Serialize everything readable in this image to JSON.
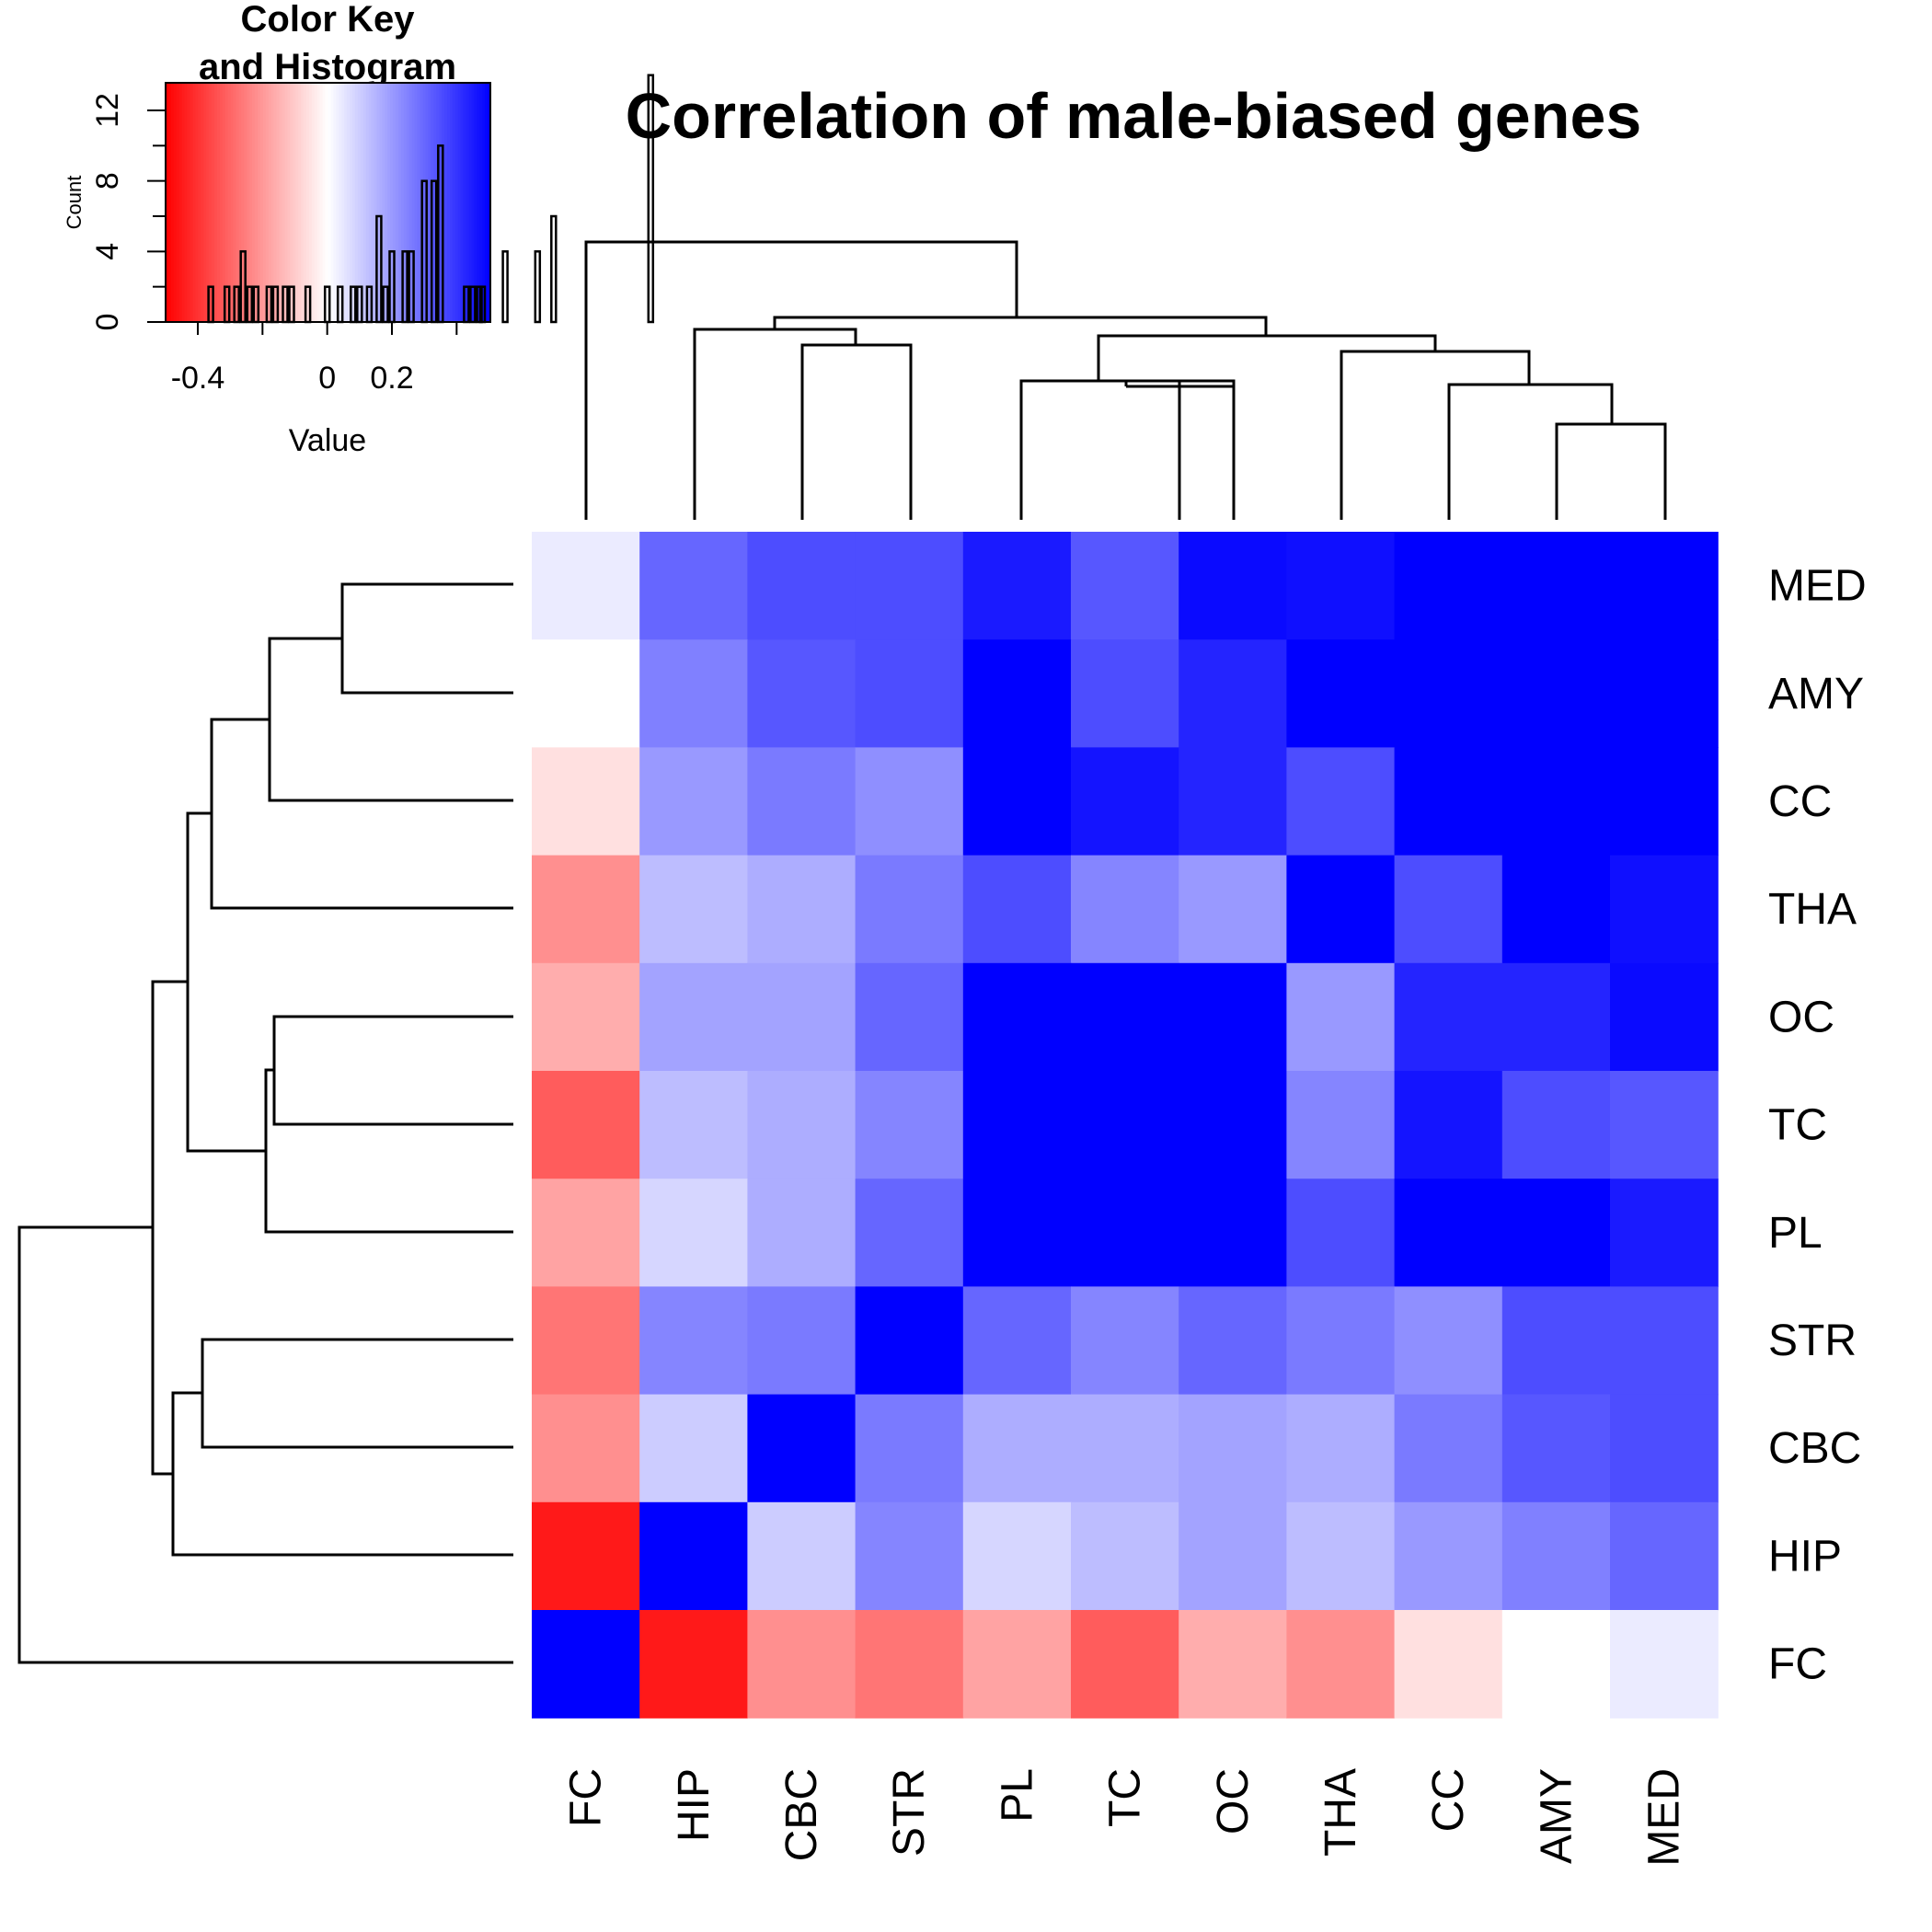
{
  "chart_data": {
    "type": "heatmap",
    "title": "Correlation of male-biased genes",
    "columns": [
      "FC",
      "HIP",
      "CBC",
      "STR",
      "PL",
      "TC",
      "OC",
      "THA",
      "CC",
      "AMY",
      "MED"
    ],
    "rows": [
      "MED",
      "AMY",
      "CC",
      "THA",
      "OC",
      "TC",
      "PL",
      "STR",
      "CBC",
      "HIP",
      "FC"
    ],
    "values": [
      [
        0.04,
        0.3,
        0.35,
        0.35,
        0.45,
        0.33,
        0.48,
        0.47,
        0.7,
        1.0,
        1.0
      ],
      [
        0.0,
        0.25,
        0.33,
        0.35,
        0.55,
        0.35,
        0.43,
        0.54,
        0.65,
        1.0,
        1.0
      ],
      [
        -0.06,
        0.2,
        0.26,
        0.22,
        0.55,
        0.46,
        0.43,
        0.35,
        1.0,
        0.65,
        0.7
      ],
      [
        -0.22,
        0.13,
        0.16,
        0.26,
        0.35,
        0.24,
        0.2,
        1.0,
        0.35,
        0.55,
        0.47
      ],
      [
        -0.16,
        0.18,
        0.18,
        0.3,
        0.65,
        0.7,
        1.0,
        0.2,
        0.43,
        0.43,
        0.48
      ],
      [
        -0.32,
        0.13,
        0.16,
        0.24,
        0.7,
        1.0,
        0.7,
        0.24,
        0.46,
        0.35,
        0.33
      ],
      [
        -0.18,
        0.08,
        0.16,
        0.3,
        1.0,
        0.7,
        0.65,
        0.35,
        0.55,
        0.55,
        0.45
      ],
      [
        -0.27,
        0.24,
        0.26,
        1.0,
        0.3,
        0.24,
        0.3,
        0.26,
        0.22,
        0.35,
        0.35
      ],
      [
        -0.22,
        0.1,
        1.0,
        0.26,
        0.16,
        0.16,
        0.18,
        0.16,
        0.26,
        0.33,
        0.35
      ],
      [
        -0.45,
        1.0,
        0.1,
        0.24,
        0.08,
        0.13,
        0.18,
        0.13,
        0.2,
        0.25,
        0.3
      ],
      [
        1.0,
        -0.45,
        -0.22,
        -0.27,
        -0.18,
        -0.32,
        -0.16,
        -0.22,
        -0.06,
        0.0,
        0.04
      ]
    ],
    "color_key": {
      "title_line1": "Color Key",
      "title_line2": "and Histogram",
      "colors": {
        "low": "#ff0000",
        "mid": "#ffffff",
        "high": "#0000ff"
      },
      "range": [
        -0.5,
        0.5
      ],
      "x_ticks": [
        -0.4,
        0,
        0.2
      ],
      "x_tick_labels": [
        "-0.4",
        "0",
        "0.2"
      ],
      "xlabel": "Value",
      "ylabel": "Count",
      "y_ticks": [
        0,
        4,
        8,
        12
      ],
      "y_tick_labels": [
        "0",
        "4",
        "8",
        "12"
      ],
      "ylim": [
        0,
        14
      ],
      "histogram_bins": [
        {
          "x": -0.36,
          "count": 2
        },
        {
          "x": -0.31,
          "count": 2
        },
        {
          "x": -0.28,
          "count": 2
        },
        {
          "x": -0.26,
          "count": 4
        },
        {
          "x": -0.24,
          "count": 2
        },
        {
          "x": -0.22,
          "count": 2
        },
        {
          "x": -0.18,
          "count": 2
        },
        {
          "x": -0.16,
          "count": 2
        },
        {
          "x": -0.13,
          "count": 2
        },
        {
          "x": -0.11,
          "count": 2
        },
        {
          "x": -0.06,
          "count": 2
        },
        {
          "x": 0.0,
          "count": 2
        },
        {
          "x": 0.04,
          "count": 2
        },
        {
          "x": 0.08,
          "count": 2
        },
        {
          "x": 0.1,
          "count": 2
        },
        {
          "x": 0.13,
          "count": 2
        },
        {
          "x": 0.16,
          "count": 6
        },
        {
          "x": 0.18,
          "count": 2
        },
        {
          "x": 0.2,
          "count": 4
        },
        {
          "x": 0.24,
          "count": 4
        },
        {
          "x": 0.26,
          "count": 4
        },
        {
          "x": 0.3,
          "count": 8
        },
        {
          "x": 0.33,
          "count": 8
        },
        {
          "x": 0.35,
          "count": 10
        },
        {
          "x": 0.43,
          "count": 2
        },
        {
          "x": 0.45,
          "count": 2
        },
        {
          "x": 0.47,
          "count": 2
        },
        {
          "x": 0.48,
          "count": 2
        },
        {
          "x": 0.55,
          "count": 4
        },
        {
          "x": 0.65,
          "count": 4
        },
        {
          "x": 0.7,
          "count": 6
        },
        {
          "x": 1.0,
          "count": 14
        }
      ]
    }
  }
}
